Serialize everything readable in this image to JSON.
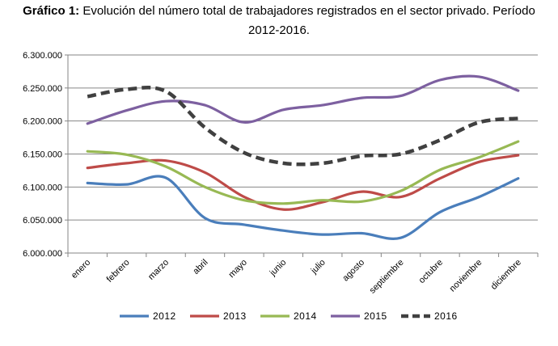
{
  "title": {
    "lead": "Gráfico 1:",
    "text": " Evolución del número total de trabajadores registrados en el sector privado. Período",
    "line2": "2012-2016."
  },
  "chart_data": {
    "type": "line",
    "categories": [
      "enero",
      "febrero",
      "marzo",
      "abril",
      "mayo",
      "junio",
      "julio",
      "agosto",
      "septiembre",
      "octubre",
      "noviembre",
      "diciembre"
    ],
    "ylim": [
      6000000,
      6300000
    ],
    "yticks": [
      "6.000.000",
      "6.050.000",
      "6.100.000",
      "6.150.000",
      "6.200.000",
      "6.250.000",
      "6.300.000"
    ],
    "grid": true,
    "legend": "bottom",
    "series": [
      {
        "name": "2012",
        "color": "#4a7ebb",
        "dashed": false,
        "values": [
          6106000,
          6104000,
          6114000,
          6053000,
          6043000,
          6034000,
          6028000,
          6030000,
          6023000,
          6062000,
          6085000,
          6113000
        ]
      },
      {
        "name": "2013",
        "color": "#be4b48",
        "dashed": false,
        "values": [
          6129000,
          6136000,
          6140000,
          6122000,
          6085000,
          6066000,
          6077000,
          6093000,
          6085000,
          6113000,
          6138000,
          6148000
        ]
      },
      {
        "name": "2014",
        "color": "#98b954",
        "dashed": false,
        "values": [
          6154000,
          6149000,
          6131000,
          6100000,
          6080000,
          6075000,
          6080000,
          6078000,
          6094000,
          6126000,
          6145000,
          6169000
        ]
      },
      {
        "name": "2015",
        "color": "#7d60a0",
        "dashed": false,
        "values": [
          6196000,
          6216000,
          6230000,
          6224000,
          6198000,
          6217000,
          6224000,
          6235000,
          6238000,
          6262000,
          6267000,
          6246000
        ]
      },
      {
        "name": "2016",
        "color": "#404040",
        "dashed": true,
        "values": [
          6237000,
          6248000,
          6245000,
          6190000,
          6152000,
          6136000,
          6136000,
          6147000,
          6150000,
          6171000,
          6198000,
          6204000
        ]
      }
    ]
  }
}
